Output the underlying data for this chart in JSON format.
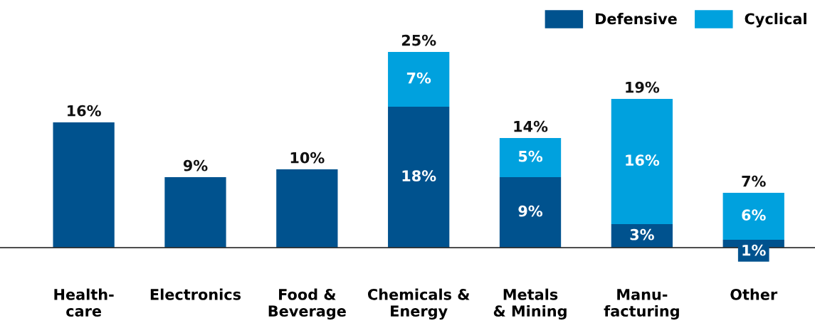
{
  "chart_data": {
    "type": "bar",
    "stacked": true,
    "categories": [
      "Health-\ncare",
      "Electronics",
      "Food &\nBeverage",
      "Chemicals &\nEnergy",
      "Metals\n& Mining",
      "Manu-\nfacturing",
      "Other"
    ],
    "series": [
      {
        "name": "Defensive",
        "color": "#00528e",
        "values": [
          16,
          9,
          10,
          18,
          9,
          3,
          1
        ],
        "value_labels": [
          null,
          null,
          null,
          "18%",
          "9%",
          "3%",
          "1%"
        ]
      },
      {
        "name": "Cyclical",
        "color": "#00a1de",
        "values": [
          null,
          null,
          null,
          7,
          5,
          16,
          6
        ],
        "value_labels": [
          null,
          null,
          null,
          "7%",
          "5%",
          "16%",
          "6%"
        ]
      }
    ],
    "totals": [
      "16%",
      "9%",
      "10%",
      "25%",
      "14%",
      "19%",
      "7%"
    ],
    "legend": "top right",
    "grid": false
  }
}
